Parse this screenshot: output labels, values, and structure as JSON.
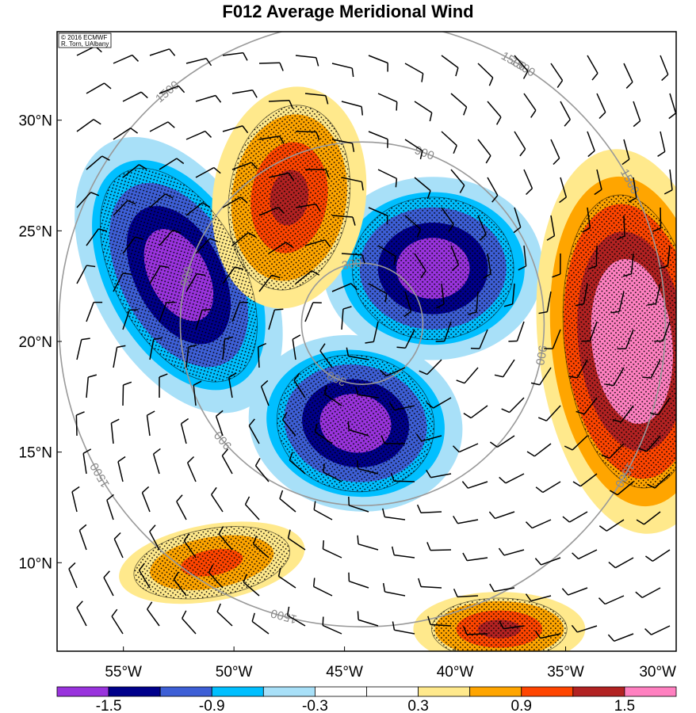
{
  "chart_data": {
    "type": "heatmap",
    "title": "F012 Average Meridional Wind",
    "credit_lines": [
      "© 2016 ECMWF",
      "R. Torn, UAlbany"
    ],
    "x_ticks": [
      {
        "value": -55,
        "label": "55°W"
      },
      {
        "value": -50,
        "label": "50°W"
      },
      {
        "value": -45,
        "label": "45°W"
      },
      {
        "value": -40,
        "label": "40°W"
      },
      {
        "value": -35,
        "label": "35°W"
      },
      {
        "value": -30,
        "label": "30°W"
      }
    ],
    "y_ticks": [
      {
        "value": 10,
        "label": "10°N"
      },
      {
        "value": 15,
        "label": "15°N"
      },
      {
        "value": 20,
        "label": "20°N"
      },
      {
        "value": 25,
        "label": "25°N"
      },
      {
        "value": 30,
        "label": "30°N"
      }
    ],
    "xlim": [
      -58,
      -30
    ],
    "ylim": [
      6,
      34
    ],
    "colorbar": {
      "colors": [
        "#9933dd",
        "#00008b",
        "#3d5fd6",
        "#00bfff",
        "#a8e0f8",
        "#ffffff",
        "#ffffff",
        "#ffe98c",
        "#ffa500",
        "#ff4500",
        "#b22222",
        "#ff80c0"
      ],
      "labels": [
        "-1.5",
        "-0.9",
        "-0.3",
        "0.3",
        "0.9",
        "1.5"
      ],
      "label_positions": [
        1,
        3,
        5,
        7,
        9,
        11
      ]
    },
    "distance_circles": {
      "center": [
        -44.2,
        20.8
      ],
      "values": [
        300,
        900,
        1500
      ],
      "color": "#999999"
    },
    "features": [
      {
        "name": "negative-anomaly-west",
        "sign": "negative",
        "center": [
          -52.5,
          23
        ],
        "peak": -1.8
      },
      {
        "name": "negative-anomaly-south",
        "sign": "negative",
        "center": [
          -44.5,
          16.3
        ],
        "peak": -1.8
      },
      {
        "name": "negative-anomaly-northeast",
        "sign": "negative",
        "center": [
          -41,
          23.3
        ],
        "peak": -1.8
      },
      {
        "name": "positive-anomaly-north",
        "sign": "positive",
        "center": [
          -47.5,
          26.5
        ],
        "peak": 1.2
      },
      {
        "name": "positive-anomaly-east",
        "sign": "positive",
        "center": [
          -32,
          20
        ],
        "peak": 2.0
      },
      {
        "name": "positive-anomaly-southwest",
        "sign": "positive",
        "center": [
          -51,
          10
        ],
        "peak": 0.9
      },
      {
        "name": "positive-anomaly-southeast",
        "sign": "positive",
        "center": [
          -38,
          7
        ],
        "peak": 1.2
      }
    ]
  }
}
